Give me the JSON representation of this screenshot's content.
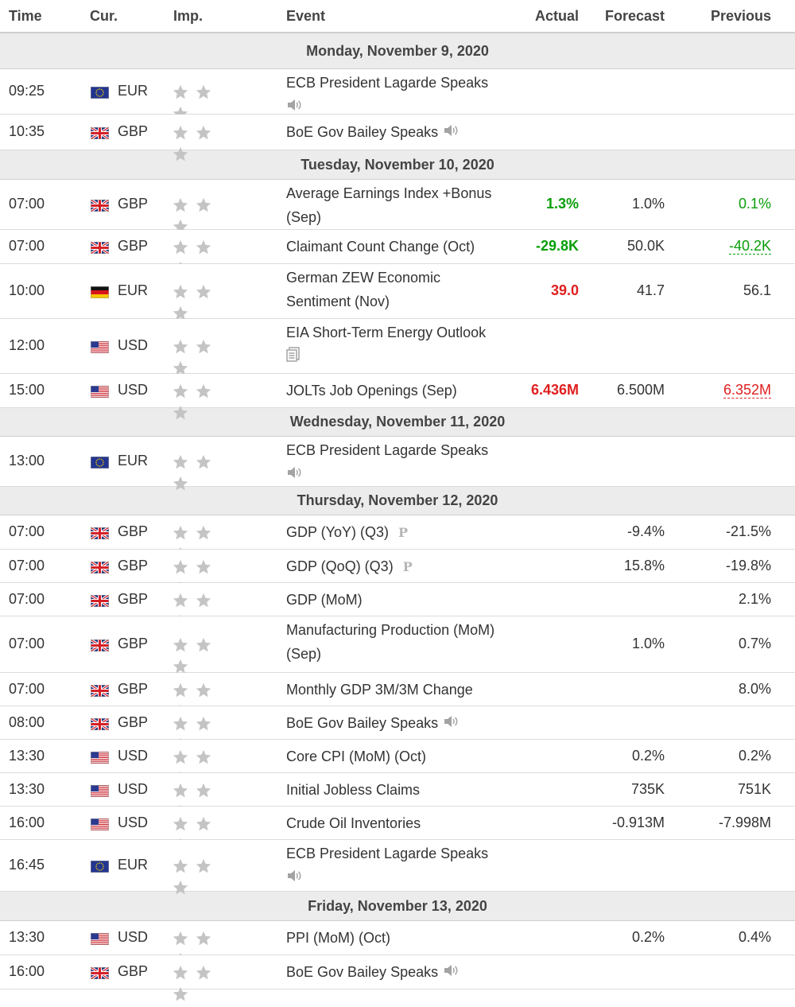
{
  "columns": {
    "time": "Time",
    "currency": "Cur.",
    "importance": "Imp.",
    "event": "Event",
    "actual": "Actual",
    "forecast": "Forecast",
    "previous": "Previous"
  },
  "colors": {
    "positive": "#0a9e0a",
    "negative": "#e01e1e",
    "day_header_bg": "#ececec",
    "star_inactive": "#c4c4c4"
  },
  "days": [
    {
      "label": "Monday, November 9, 2020",
      "events": [
        {
          "time": "09:25",
          "flag": "eu-flag",
          "currency": "EUR",
          "importance": 3,
          "event_line1": "ECB President Lagarde Speaks",
          "event_line2": "",
          "icon": "speaker-icon",
          "actual": "",
          "forecast": "",
          "previous": ""
        },
        {
          "time": "10:35",
          "flag": "uk-flag",
          "currency": "GBP",
          "importance": 3,
          "event_line1": "BoE Gov Bailey Speaks",
          "event_line2": "",
          "icon": "speaker-icon",
          "actual": "",
          "forecast": "",
          "previous": ""
        }
      ]
    },
    {
      "label": "Tuesday, November 10, 2020",
      "events": [
        {
          "time": "07:00",
          "flag": "uk-flag",
          "currency": "GBP",
          "importance": 3,
          "event_line1": "Average Earnings Index +Bonus",
          "event_line2": "(Sep)",
          "icon": "",
          "actual": "1.3%",
          "actual_color": "positive",
          "forecast": "1.0%",
          "previous": "0.1%",
          "previous_color": "positive"
        },
        {
          "time": "07:00",
          "flag": "uk-flag",
          "currency": "GBP",
          "importance": 3,
          "event_line1": "Claimant Count Change (Oct)",
          "event_line2": "",
          "icon": "",
          "actual": "-29.8K",
          "actual_color": "positive",
          "forecast": "50.0K",
          "previous": "-40.2K",
          "previous_color": "positive",
          "previous_revised": true
        },
        {
          "time": "10:00",
          "flag": "de-flag",
          "currency": "EUR",
          "importance": 3,
          "event_line1": "German ZEW Economic",
          "event_line2": "Sentiment (Nov)",
          "icon": "",
          "actual": "39.0",
          "actual_color": "negative",
          "forecast": "41.7",
          "previous": "56.1"
        },
        {
          "time": "12:00",
          "flag": "us-flag",
          "currency": "USD",
          "importance": 3,
          "event_line1": "EIA Short-Term Energy Outlook",
          "event_line2": "",
          "icon": "report-icon",
          "actual": "",
          "forecast": "",
          "previous": ""
        },
        {
          "time": "15:00",
          "flag": "us-flag",
          "currency": "USD",
          "importance": 3,
          "event_line1": "JOLTs Job Openings (Sep)",
          "event_line2": "",
          "icon": "",
          "actual": "6.436M",
          "actual_color": "negative",
          "forecast": "6.500M",
          "previous": "6.352M",
          "previous_color": "negative",
          "previous_revised": true
        }
      ]
    },
    {
      "label": "Wednesday, November 11, 2020",
      "events": [
        {
          "time": "13:00",
          "flag": "eu-flag",
          "currency": "EUR",
          "importance": 3,
          "event_line1": "ECB President Lagarde Speaks",
          "event_line2": "",
          "icon": "speaker-icon",
          "actual": "",
          "forecast": "",
          "previous": ""
        }
      ]
    },
    {
      "label": "Thursday, November 12, 2020",
      "events": [
        {
          "time": "07:00",
          "flag": "uk-flag",
          "currency": "GBP",
          "importance": 3,
          "event_line1": "GDP (YoY) (Q3)",
          "event_line2": "",
          "icon": "preliminary-icon",
          "icon_text": "P",
          "actual": "",
          "forecast": "-9.4%",
          "previous": "-21.5%"
        },
        {
          "time": "07:00",
          "flag": "uk-flag",
          "currency": "GBP",
          "importance": 3,
          "event_line1": "GDP (QoQ) (Q3)",
          "event_line2": "",
          "icon": "preliminary-icon",
          "icon_text": "P",
          "actual": "",
          "forecast": "15.8%",
          "previous": "-19.8%"
        },
        {
          "time": "07:00",
          "flag": "uk-flag",
          "currency": "GBP",
          "importance": 3,
          "event_line1": "GDP (MoM)",
          "event_line2": "",
          "icon": "",
          "actual": "",
          "forecast": "",
          "previous": "2.1%"
        },
        {
          "time": "07:00",
          "flag": "uk-flag",
          "currency": "GBP",
          "importance": 3,
          "event_line1": "Manufacturing Production (MoM)",
          "event_line2": "(Sep)",
          "icon": "",
          "actual": "",
          "forecast": "1.0%",
          "previous": "0.7%"
        },
        {
          "time": "07:00",
          "flag": "uk-flag",
          "currency": "GBP",
          "importance": 3,
          "event_line1": "Monthly GDP 3M/3M Change",
          "event_line2": "",
          "icon": "",
          "actual": "",
          "forecast": "",
          "previous": "8.0%"
        },
        {
          "time": "08:00",
          "flag": "uk-flag",
          "currency": "GBP",
          "importance": 3,
          "event_line1": "BoE Gov Bailey Speaks",
          "event_line2": "",
          "icon": "speaker-icon",
          "actual": "",
          "forecast": "",
          "previous": ""
        },
        {
          "time": "13:30",
          "flag": "us-flag",
          "currency": "USD",
          "importance": 3,
          "event_line1": "Core CPI (MoM) (Oct)",
          "event_line2": "",
          "icon": "",
          "actual": "",
          "forecast": "0.2%",
          "previous": "0.2%"
        },
        {
          "time": "13:30",
          "flag": "us-flag",
          "currency": "USD",
          "importance": 3,
          "event_line1": "Initial Jobless Claims",
          "event_line2": "",
          "icon": "",
          "actual": "",
          "forecast": "735K",
          "previous": "751K"
        },
        {
          "time": "16:00",
          "flag": "us-flag",
          "currency": "USD",
          "importance": 3,
          "event_line1": "Crude Oil Inventories",
          "event_line2": "",
          "icon": "",
          "actual": "",
          "forecast": "-0.913M",
          "previous": "-7.998M"
        },
        {
          "time": "16:45",
          "flag": "eu-flag",
          "currency": "EUR",
          "importance": 3,
          "event_line1": "ECB President Lagarde Speaks",
          "event_line2": "",
          "icon": "speaker-icon",
          "actual": "",
          "forecast": "",
          "previous": ""
        }
      ]
    },
    {
      "label": "Friday, November 13, 2020",
      "events": [
        {
          "time": "13:30",
          "flag": "us-flag",
          "currency": "USD",
          "importance": 3,
          "event_line1": "PPI (MoM) (Oct)",
          "event_line2": "",
          "icon": "",
          "actual": "",
          "forecast": "0.2%",
          "previous": "0.4%"
        },
        {
          "time": "16:00",
          "flag": "uk-flag",
          "currency": "GBP",
          "importance": 3,
          "event_line1": "BoE Gov Bailey Speaks",
          "event_line2": "",
          "icon": "speaker-icon",
          "actual": "",
          "forecast": "",
          "previous": ""
        }
      ]
    }
  ]
}
